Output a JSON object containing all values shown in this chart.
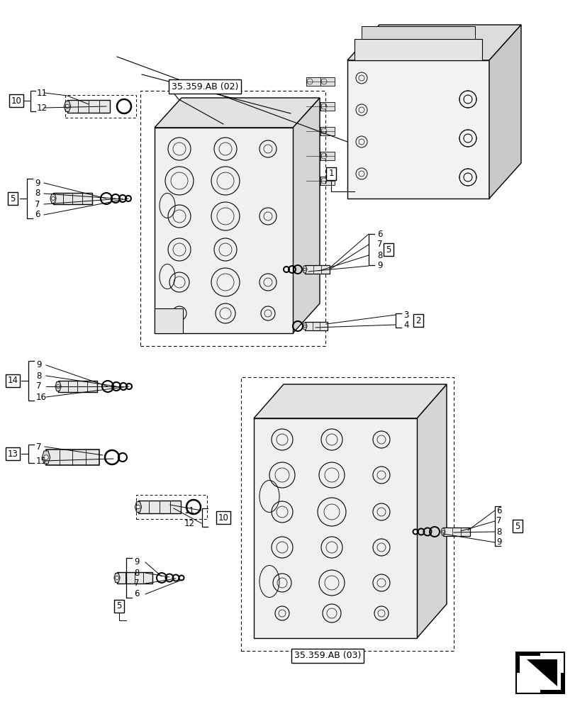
{
  "bg_color": "#ffffff",
  "line_color": "#1a1a1a",
  "fig_width": 8.12,
  "fig_height": 10.0,
  "dpi": 100,
  "callout_AB02": "35.359.AB (02)",
  "callout_AB03": "35.359.AB (03)",
  "gray_light": "#e8e8e8",
  "gray_mid": "#d0d0d0",
  "gray_dark": "#b0b0b0"
}
